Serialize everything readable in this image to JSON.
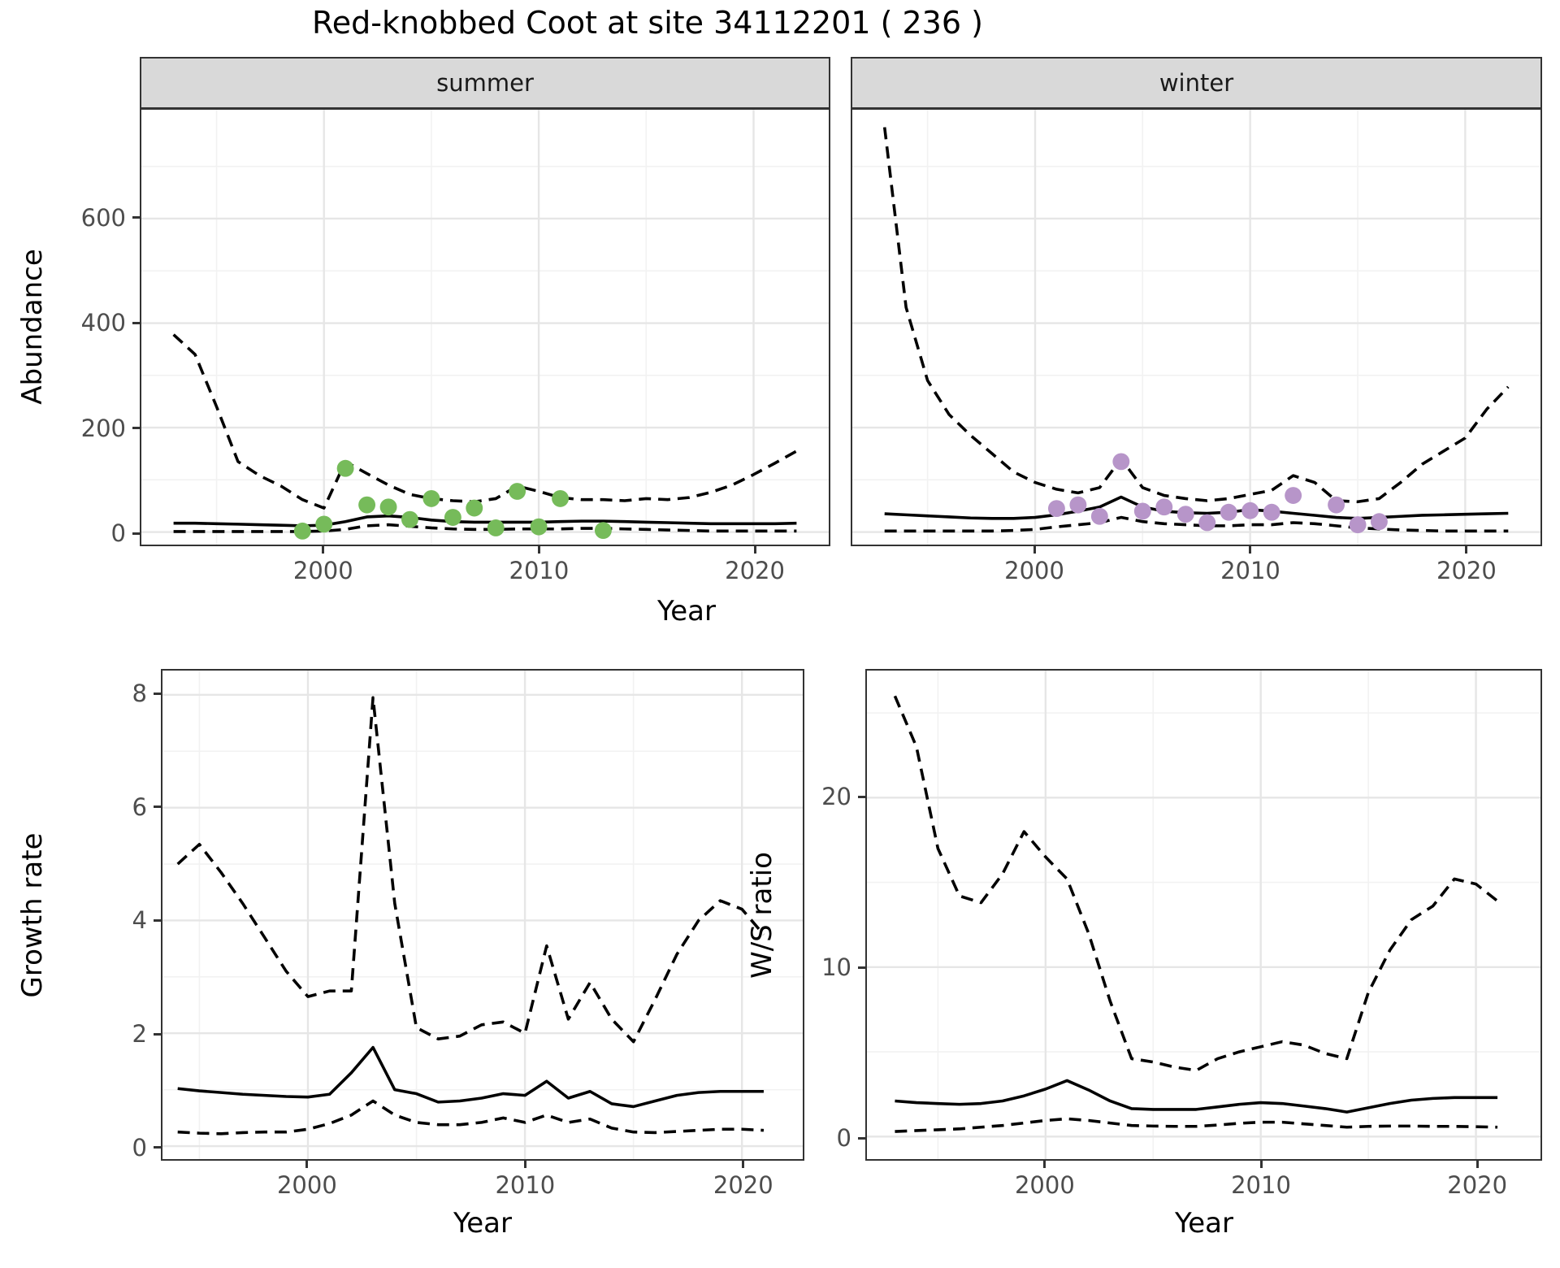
{
  "title": "Red-knobbed Coot at site 34112201 ( 236 )",
  "facets": {
    "summer": "summer",
    "winter": "winter"
  },
  "axis_titles": {
    "abundance": "Abundance",
    "top_year": "Year",
    "growth": "Growth rate",
    "growth_year": "Year",
    "ws": "W/S ratio",
    "ws_year": "Year"
  },
  "colors": {
    "summer_points": "#76bb5a",
    "winter_points": "#b795c9",
    "line": "#000000",
    "grid_major": "#e6e6e6",
    "grid_minor": "#f2f2f2",
    "strip_bg": "#d9d9d9",
    "tick_text": "#4d4d4d",
    "panel_border": "#333333"
  },
  "chart_data": [
    {
      "panel": "summer",
      "type": "line",
      "facet_label": "summer",
      "xlabel": "Year",
      "ylabel": "Abundance",
      "xlim": [
        1991.5,
        2023.5
      ],
      "ylim": [
        -24,
        808.5
      ],
      "xticks": [
        {
          "label": "2000",
          "value": 2000
        },
        {
          "label": "2010",
          "value": 2010
        },
        {
          "label": "2020",
          "value": 2020
        }
      ],
      "yticks": [
        {
          "label": "0",
          "value": 0
        },
        {
          "label": "200",
          "value": 200
        },
        {
          "label": "400",
          "value": 400
        },
        {
          "label": "600",
          "value": 600
        }
      ],
      "xticks_minor": [
        1995,
        2005,
        2015
      ],
      "yticks_minor": [
        100,
        300,
        500,
        700
      ],
      "legend": "none",
      "series": [
        {
          "name": "upper-95ci",
          "style": "dashed",
          "x": [
            1993,
            1994,
            1995,
            1996,
            1997,
            1998,
            1999,
            2000,
            2001,
            2002,
            2003,
            2004,
            2005,
            2006,
            2007,
            2008,
            2009,
            2010,
            2011,
            2012,
            2013,
            2014,
            2015,
            2016,
            2017,
            2018,
            2019,
            2020,
            2021,
            2022
          ],
          "y": [
            378,
            340,
            240,
            135,
            108,
            88,
            62,
            46,
            135,
            112,
            90,
            72,
            64,
            60,
            58,
            64,
            88,
            78,
            66,
            62,
            62,
            60,
            64,
            62,
            66,
            76,
            90,
            110,
            132,
            155
          ]
        },
        {
          "name": "median",
          "style": "solid",
          "x": [
            1993,
            1994,
            1995,
            1996,
            1997,
            1998,
            1999,
            2000,
            2001,
            2002,
            2003,
            2004,
            2005,
            2006,
            2007,
            2008,
            2009,
            2010,
            2011,
            2012,
            2013,
            2014,
            2015,
            2016,
            2017,
            2018,
            2019,
            2020,
            2021,
            2022
          ],
          "y": [
            17,
            17,
            16,
            15,
            14,
            13,
            12,
            13,
            20,
            29,
            31,
            28,
            23,
            20,
            19,
            19,
            19,
            19,
            20,
            21,
            21,
            20,
            19,
            18,
            17,
            16,
            16,
            16,
            16,
            17
          ]
        },
        {
          "name": "lower-95ci",
          "style": "dashed",
          "x": [
            1993,
            1994,
            1995,
            1996,
            1997,
            1998,
            1999,
            2000,
            2001,
            2002,
            2003,
            2004,
            2005,
            2006,
            2007,
            2008,
            2009,
            2010,
            2011,
            2012,
            2013,
            2014,
            2015,
            2016,
            2017,
            2018,
            2019,
            2020,
            2021,
            2022
          ],
          "y": [
            1,
            1,
            1,
            1,
            1,
            1,
            1,
            2,
            5,
            12,
            14,
            11,
            8,
            6,
            5,
            5,
            6,
            6,
            6,
            7,
            7,
            6,
            5,
            4,
            3,
            2,
            2,
            2,
            2,
            2
          ]
        }
      ],
      "points": {
        "name": "summer-counts",
        "color_key": "summer_points",
        "x": [
          1999,
          2000,
          2001,
          2002,
          2003,
          2004,
          2005,
          2006,
          2007,
          2008,
          2009,
          2010,
          2011,
          2013
        ],
        "y": [
          2,
          15,
          122,
          52,
          48,
          24,
          64,
          28,
          46,
          8,
          78,
          10,
          64,
          3
        ]
      }
    },
    {
      "panel": "winter",
      "type": "line",
      "facet_label": "winter",
      "xlabel": "Year",
      "ylabel": "Abundance",
      "xlim": [
        1991.5,
        2023.5
      ],
      "ylim": [
        -24,
        808.5
      ],
      "xticks": [
        {
          "label": "2000",
          "value": 2000
        },
        {
          "label": "2010",
          "value": 2010
        },
        {
          "label": "2020",
          "value": 2020
        }
      ],
      "yticks": [
        {
          "label": "0",
          "value": 0
        },
        {
          "label": "200",
          "value": 200
        },
        {
          "label": "400",
          "value": 400
        },
        {
          "label": "600",
          "value": 600
        }
      ],
      "xticks_minor": [
        1995,
        2005,
        2015
      ],
      "yticks_minor": [
        100,
        300,
        500,
        700
      ],
      "legend": "none",
      "series": [
        {
          "name": "upper-95ci",
          "style": "dashed",
          "x": [
            1993,
            1994,
            1995,
            1996,
            1997,
            1998,
            1999,
            2000,
            2001,
            2002,
            2003,
            2004,
            2005,
            2006,
            2007,
            2008,
            2009,
            2010,
            2011,
            2012,
            2013,
            2014,
            2015,
            2016,
            2017,
            2018,
            2019,
            2020,
            2021,
            2022
          ],
          "y": [
            775,
            430,
            290,
            225,
            185,
            150,
            115,
            95,
            82,
            75,
            85,
            140,
            85,
            70,
            64,
            60,
            64,
            72,
            80,
            108,
            95,
            60,
            58,
            64,
            95,
            130,
            155,
            180,
            235,
            278
          ]
        },
        {
          "name": "median",
          "style": "solid",
          "x": [
            1993,
            1994,
            1995,
            1996,
            1997,
            1998,
            1999,
            2000,
            2001,
            2002,
            2003,
            2004,
            2005,
            2006,
            2007,
            2008,
            2009,
            2010,
            2011,
            2012,
            2013,
            2014,
            2015,
            2016,
            2017,
            2018,
            2019,
            2020,
            2021,
            2022
          ],
          "y": [
            35,
            33,
            31,
            29,
            27,
            26,
            26,
            28,
            33,
            40,
            48,
            67,
            48,
            40,
            37,
            36,
            38,
            43,
            40,
            36,
            32,
            28,
            26,
            28,
            30,
            32,
            33,
            34,
            35,
            36
          ]
        },
        {
          "name": "lower-95ci",
          "style": "dashed",
          "x": [
            1993,
            1994,
            1995,
            1996,
            1997,
            1998,
            1999,
            2000,
            2001,
            2002,
            2003,
            2004,
            2005,
            2006,
            2007,
            2008,
            2009,
            2010,
            2011,
            2012,
            2013,
            2014,
            2015,
            2016,
            2017,
            2018,
            2019,
            2020,
            2021,
            2022
          ],
          "y": [
            2,
            2,
            2,
            2,
            2,
            2,
            3,
            5,
            10,
            14,
            18,
            28,
            20,
            16,
            14,
            12,
            12,
            14,
            14,
            18,
            16,
            12,
            8,
            6,
            4,
            3,
            2,
            2,
            2,
            2
          ]
        }
      ],
      "points": {
        "name": "winter-counts",
        "color_key": "winter_points",
        "x": [
          2001,
          2002,
          2003,
          2004,
          2005,
          2006,
          2007,
          2008,
          2009,
          2010,
          2011,
          2012,
          2014,
          2015,
          2016
        ],
        "y": [
          45,
          52,
          30,
          135,
          40,
          48,
          34,
          18,
          38,
          41,
          38,
          70,
          52,
          14,
          20
        ]
      }
    },
    {
      "panel": "growth",
      "type": "line",
      "facet_label": "",
      "xlabel": "Year",
      "ylabel": "Growth rate",
      "xlim": [
        1993.3,
        2022.8
      ],
      "ylim": [
        -0.23,
        8.43
      ],
      "xticks": [
        {
          "label": "2000",
          "value": 2000
        },
        {
          "label": "2010",
          "value": 2010
        },
        {
          "label": "2020",
          "value": 2020
        }
      ],
      "yticks": [
        {
          "label": "0",
          "value": 0
        },
        {
          "label": "2",
          "value": 2
        },
        {
          "label": "4",
          "value": 4
        },
        {
          "label": "6",
          "value": 6
        },
        {
          "label": "8",
          "value": 8
        }
      ],
      "xticks_minor": [
        1995,
        2005,
        2015
      ],
      "yticks_minor": [
        1,
        3,
        5,
        7
      ],
      "legend": "none",
      "series": [
        {
          "name": "upper-95ci",
          "style": "dashed",
          "x": [
            1994,
            1995,
            1996,
            1997,
            1998,
            1999,
            2000,
            2001,
            2002,
            2003,
            2004,
            2005,
            2006,
            2007,
            2008,
            2009,
            2010,
            2011,
            2012,
            2013,
            2014,
            2015,
            2016,
            2017,
            2018,
            2019,
            2020,
            2021
          ],
          "y": [
            5.0,
            5.35,
            4.85,
            4.3,
            3.7,
            3.1,
            2.65,
            2.75,
            2.75,
            7.95,
            4.3,
            2.1,
            1.9,
            1.95,
            2.15,
            2.2,
            2.0,
            3.55,
            2.25,
            2.9,
            2.25,
            1.85,
            2.6,
            3.4,
            4.0,
            4.35,
            4.2,
            3.75
          ]
        },
        {
          "name": "median",
          "style": "solid",
          "x": [
            1994,
            1995,
            1996,
            1997,
            1998,
            1999,
            2000,
            2001,
            2002,
            2003,
            2004,
            2005,
            2006,
            2007,
            2008,
            2009,
            2010,
            2011,
            2012,
            2013,
            2014,
            2015,
            2016,
            2017,
            2018,
            2019,
            2020,
            2021
          ],
          "y": [
            1.02,
            0.98,
            0.95,
            0.92,
            0.9,
            0.88,
            0.87,
            0.92,
            1.3,
            1.75,
            1.0,
            0.93,
            0.78,
            0.8,
            0.85,
            0.93,
            0.9,
            1.15,
            0.85,
            0.97,
            0.75,
            0.7,
            0.8,
            0.9,
            0.95,
            0.97,
            0.97,
            0.97
          ]
        },
        {
          "name": "lower-95ci",
          "style": "dashed",
          "x": [
            1994,
            1995,
            1996,
            1997,
            1998,
            1999,
            2000,
            2001,
            2002,
            2003,
            2004,
            2005,
            2006,
            2007,
            2008,
            2009,
            2010,
            2011,
            2012,
            2013,
            2014,
            2015,
            2016,
            2017,
            2018,
            2019,
            2020,
            2021
          ],
          "y": [
            0.25,
            0.23,
            0.22,
            0.24,
            0.25,
            0.25,
            0.3,
            0.4,
            0.55,
            0.8,
            0.55,
            0.42,
            0.38,
            0.38,
            0.42,
            0.5,
            0.42,
            0.55,
            0.42,
            0.48,
            0.32,
            0.25,
            0.24,
            0.26,
            0.28,
            0.3,
            0.3,
            0.28
          ]
        }
      ],
      "points": null
    },
    {
      "panel": "ws",
      "type": "line",
      "facet_label": "",
      "xlabel": "Year",
      "ylabel": "W/S ratio",
      "xlim": [
        1991.7,
        2023.0
      ],
      "ylim": [
        -1.33,
        27.5
      ],
      "xticks": [
        {
          "label": "2000",
          "value": 2000
        },
        {
          "label": "2010",
          "value": 2010
        },
        {
          "label": "2020",
          "value": 2020
        }
      ],
      "yticks": [
        {
          "label": "0",
          "value": 0
        },
        {
          "label": "10",
          "value": 10
        },
        {
          "label": "20",
          "value": 20
        }
      ],
      "xticks_minor": [
        1995,
        2005,
        2015
      ],
      "yticks_minor": [
        5,
        15,
        25
      ],
      "legend": "none",
      "series": [
        {
          "name": "upper-95ci",
          "style": "dashed",
          "x": [
            1993,
            1994,
            1995,
            1996,
            1997,
            1998,
            1999,
            2000,
            2001,
            2002,
            2003,
            2004,
            2005,
            2006,
            2007,
            2008,
            2009,
            2010,
            2011,
            2012,
            2013,
            2014,
            2015,
            2016,
            2017,
            2018,
            2019,
            2020,
            2021
          ],
          "y": [
            26,
            23,
            17,
            14.2,
            13.8,
            15.5,
            18,
            16.5,
            15.2,
            12,
            8,
            4.6,
            4.4,
            4.1,
            3.9,
            4.6,
            5.0,
            5.3,
            5.6,
            5.4,
            4.9,
            4.6,
            8.5,
            11,
            12.8,
            13.6,
            15.2,
            14.9,
            13.9
          ]
        },
        {
          "name": "median",
          "style": "solid",
          "x": [
            1993,
            1994,
            1995,
            1996,
            1997,
            1998,
            1999,
            2000,
            2001,
            2002,
            2003,
            2004,
            2005,
            2006,
            2007,
            2008,
            2009,
            2010,
            2011,
            2012,
            2013,
            2014,
            2015,
            2016,
            2017,
            2018,
            2019,
            2020,
            2021
          ],
          "y": [
            2.1,
            2.0,
            1.95,
            1.9,
            1.95,
            2.1,
            2.4,
            2.8,
            3.3,
            2.75,
            2.1,
            1.65,
            1.6,
            1.6,
            1.6,
            1.75,
            1.9,
            2.0,
            1.95,
            1.8,
            1.65,
            1.45,
            1.7,
            1.95,
            2.15,
            2.25,
            2.3,
            2.3,
            2.3
          ]
        },
        {
          "name": "lower-95ci",
          "style": "dashed",
          "x": [
            1993,
            1994,
            1995,
            1996,
            1997,
            1998,
            1999,
            2000,
            2001,
            2002,
            2003,
            2004,
            2005,
            2006,
            2007,
            2008,
            2009,
            2010,
            2011,
            2012,
            2013,
            2014,
            2015,
            2016,
            2017,
            2018,
            2019,
            2020,
            2021
          ],
          "y": [
            0.3,
            0.35,
            0.4,
            0.45,
            0.55,
            0.65,
            0.8,
            0.95,
            1.05,
            0.95,
            0.8,
            0.65,
            0.62,
            0.6,
            0.6,
            0.68,
            0.78,
            0.85,
            0.85,
            0.75,
            0.65,
            0.55,
            0.6,
            0.62,
            0.62,
            0.6,
            0.6,
            0.58,
            0.55
          ]
        }
      ],
      "points": null
    }
  ]
}
